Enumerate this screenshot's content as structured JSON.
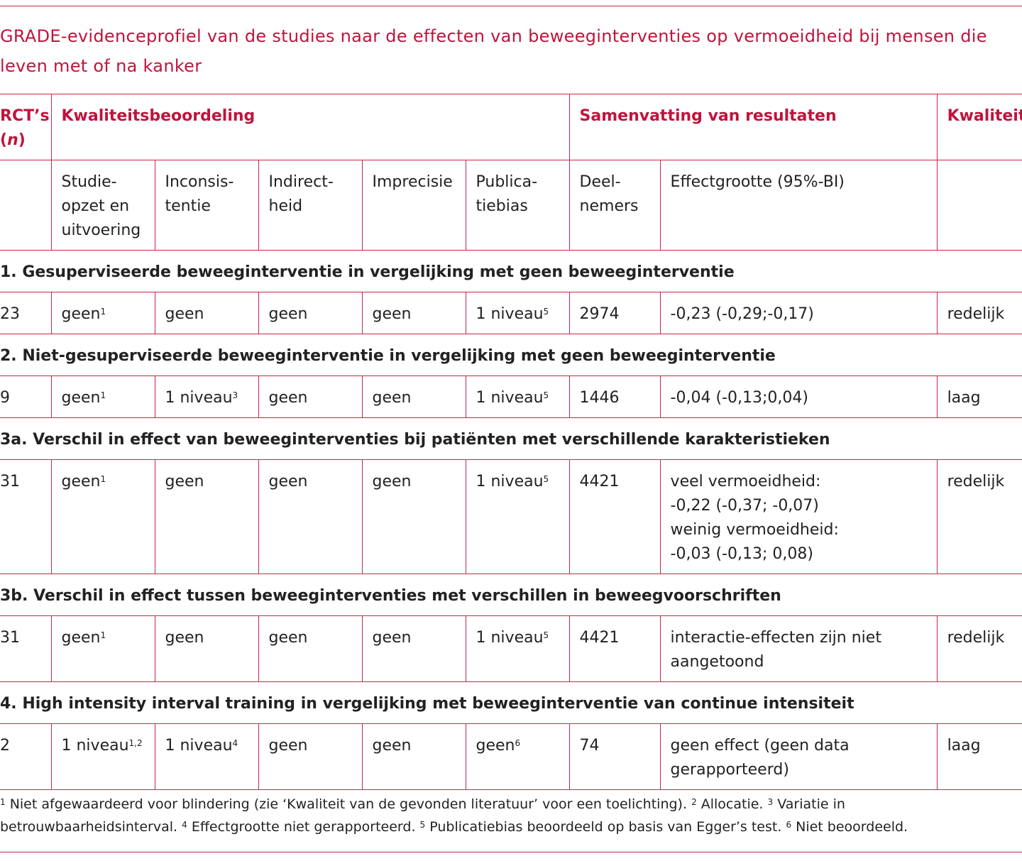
{
  "title": "GRADE-evidenceprofiel van de studies naar de effecten van beweeginterventies op vermoeidheid bij mensen die leven met of na kanker",
  "table": {
    "header": {
      "rcts": "RCT’s",
      "n_open": "(",
      "n": "n",
      "n_close": ")",
      "quality_assessment": "Kwaliteitsbeoordeling",
      "summary": "Samenvatting van resultaten",
      "quality": "Kwaliteit"
    },
    "subheaders": [
      "Studie-opzet en uitvoering",
      "Inconsis-tentie",
      "Indirect-heid",
      "Imprecisie",
      "Publica-tiebias",
      "Deel-nemers",
      "Effectgrootte (95%-BI)"
    ],
    "sections": [
      {
        "heading": "1. Gesuperviseerde beweeginterventie in vergelijking met geen beweeginterventie",
        "row": {
          "rcts": 23,
          "cells": [
            {
              "text": "geen",
              "sup": "1"
            },
            {
              "text": "geen"
            },
            {
              "text": "geen"
            },
            {
              "text": "geen"
            },
            {
              "text": "1 niveau",
              "sup": "5"
            }
          ],
          "participants": 2974,
          "effect": [
            "-0,23 (-0,29;-0,17)"
          ],
          "quality": "redelijk"
        }
      },
      {
        "heading": "2. Niet-gesuperviseerde beweeginterventie in vergelijking met geen beweeginterventie",
        "row": {
          "rcts": 9,
          "cells": [
            {
              "text": "geen",
              "sup": "1"
            },
            {
              "text": "1 niveau",
              "sup": "3"
            },
            {
              "text": "geen"
            },
            {
              "text": "geen"
            },
            {
              "text": "1 niveau",
              "sup": "5"
            }
          ],
          "participants": 1446,
          "effect": [
            "-0,04 (-0,13;0,04)"
          ],
          "quality": "laag"
        }
      },
      {
        "heading": "3a. Verschil in effect van beweeginterventies bij patiënten met verschillende karakteristieken",
        "row": {
          "rcts": 31,
          "cells": [
            {
              "text": "geen",
              "sup": "1"
            },
            {
              "text": "geen"
            },
            {
              "text": "geen"
            },
            {
              "text": "geen"
            },
            {
              "text": "1 niveau",
              "sup": "5"
            }
          ],
          "participants": 4421,
          "effect": [
            "veel vermoeidheid:",
            "-0,22 (-0,37; -0,07)",
            "weinig vermoeidheid:",
            "-0,03 (-0,13; 0,08)"
          ],
          "quality": "redelijk"
        }
      },
      {
        "heading": "3b. Verschil in effect tussen beweeginterventies met verschillen in beweegvoorschriften",
        "row": {
          "rcts": 31,
          "cells": [
            {
              "text": "geen",
              "sup": "1"
            },
            {
              "text": "geen"
            },
            {
              "text": "geen"
            },
            {
              "text": "geen"
            },
            {
              "text": "1 niveau",
              "sup": "5"
            }
          ],
          "participants": 4421,
          "effect": [
            "interactie-effecten zijn niet aangetoond"
          ],
          "quality": "redelijk"
        }
      },
      {
        "heading": "4. High intensity interval training in vergelijking met beweeginterventie van continue intensiteit",
        "row": {
          "rcts": 2,
          "cells": [
            {
              "text": "1 niveau",
              "sup": "1,2"
            },
            {
              "text": "1 niveau",
              "sup": "4"
            },
            {
              "text": "geen"
            },
            {
              "text": "geen"
            },
            {
              "text": "geen",
              "sup": "6"
            }
          ],
          "participants": 74,
          "effect": [
            "geen effect (geen data gerapporteerd)"
          ],
          "quality": "laag"
        }
      }
    ]
  },
  "footnotes": [
    {
      "mark": "1",
      "text": "Niet afgewaardeerd voor blindering (zie ‘Kwaliteit van de gevonden literatuur’ voor een toelichting)."
    },
    {
      "mark": "2",
      "text": "Allocatie."
    },
    {
      "mark": "3",
      "text": "Variatie in betrouwbaarheidsinterval."
    },
    {
      "mark": "4",
      "text": "Effectgrootte niet gerapporteerd."
    },
    {
      "mark": "5",
      "text": "Publicatiebias beoordeeld op basis van Egger’s test."
    },
    {
      "mark": "6",
      "text": "Niet beoordeeld."
    }
  ]
}
